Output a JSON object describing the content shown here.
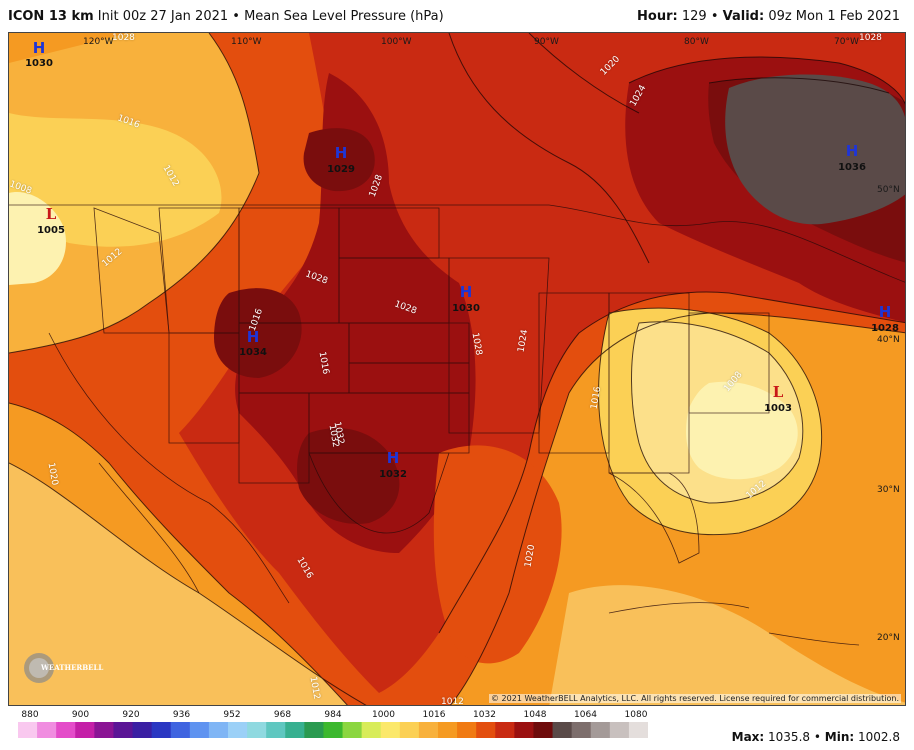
{
  "header": {
    "model": "ICON 13 km",
    "init": "Init 00z 27 Jan 2021",
    "product": "Mean Sea Level Pressure (hPa)",
    "hour_label": "Hour:",
    "hour_value": "129",
    "valid_label": "Valid:",
    "valid_value": "09z Mon 1 Feb 2021"
  },
  "map": {
    "longitudes": [
      "120°W",
      "110°W",
      "100°W",
      "90°W",
      "80°W",
      "70°W"
    ],
    "latitudes": [
      "50°N",
      "40°N",
      "30°N",
      "20°N"
    ],
    "pressure_centers": [
      {
        "type": "H",
        "value": "1030"
      },
      {
        "type": "H",
        "value": "1029"
      },
      {
        "type": "H",
        "value": "1036"
      },
      {
        "type": "L",
        "value": "1005"
      },
      {
        "type": "H",
        "value": "1030"
      },
      {
        "type": "H",
        "value": "1034"
      },
      {
        "type": "H",
        "value": "1028"
      },
      {
        "type": "H",
        "value": "1032"
      },
      {
        "type": "L",
        "value": "1003"
      }
    ],
    "isobar_labels": [
      "1028",
      "1020",
      "1024",
      "1028",
      "1016",
      "1012",
      "1012",
      "1028",
      "1028",
      "1028",
      "1024",
      "1032",
      "1016",
      "1020",
      "1016",
      "1008",
      "1012",
      "1020",
      "1016",
      "1012",
      "1012",
      "1032",
      "1028",
      "1016",
      "1008"
    ],
    "copyright": "© 2021 WeatherBELL Analytics, LLC. All rights reserved. License required for commercial distribution.",
    "logo_text": "WEATHERBELL",
    "colors": {
      "pale": "#fdf2b0",
      "light_yellow": "#fce08a",
      "yellow_orange": "#f9c05a",
      "orange": "#f59a22",
      "dark_orange": "#f07a12",
      "red_orange": "#e34e0e",
      "red": "#c92a12",
      "dark_red": "#9b1010",
      "maroon": "#7a0d0d",
      "high_gray": "#5a4a48",
      "low_marker": "#c81818",
      "high_marker": "#1f35d6"
    }
  },
  "colorbar": {
    "ticks": [
      "880",
      "900",
      "920",
      "936",
      "952",
      "968",
      "984",
      "1000",
      "1016",
      "1032",
      "1048",
      "1064",
      "1080"
    ],
    "colors": [
      "#f9c8ef",
      "#f08de0",
      "#e44cc9",
      "#c41fa7",
      "#8a1494",
      "#5b1596",
      "#3a1fa3",
      "#2a37c2",
      "#3f64e0",
      "#5f93f0",
      "#7fb5f5",
      "#9bd0f7",
      "#8fd9e0",
      "#5fc7c0",
      "#37b090",
      "#2a9a50",
      "#3cb82e",
      "#8bd640",
      "#d8ec5a",
      "#fbe86b",
      "#fbd055",
      "#f8b13c",
      "#f59a22",
      "#f07a12",
      "#e34e0e",
      "#c92a12",
      "#9b1010",
      "#6e0b0b",
      "#5a4a48",
      "#7d6e6c",
      "#a49a98",
      "#c8c0be",
      "#e4dedc"
    ]
  },
  "footer": {
    "max_label": "Max:",
    "max_value": "1035.8",
    "min_label": "Min:",
    "min_value": "1002.8"
  }
}
